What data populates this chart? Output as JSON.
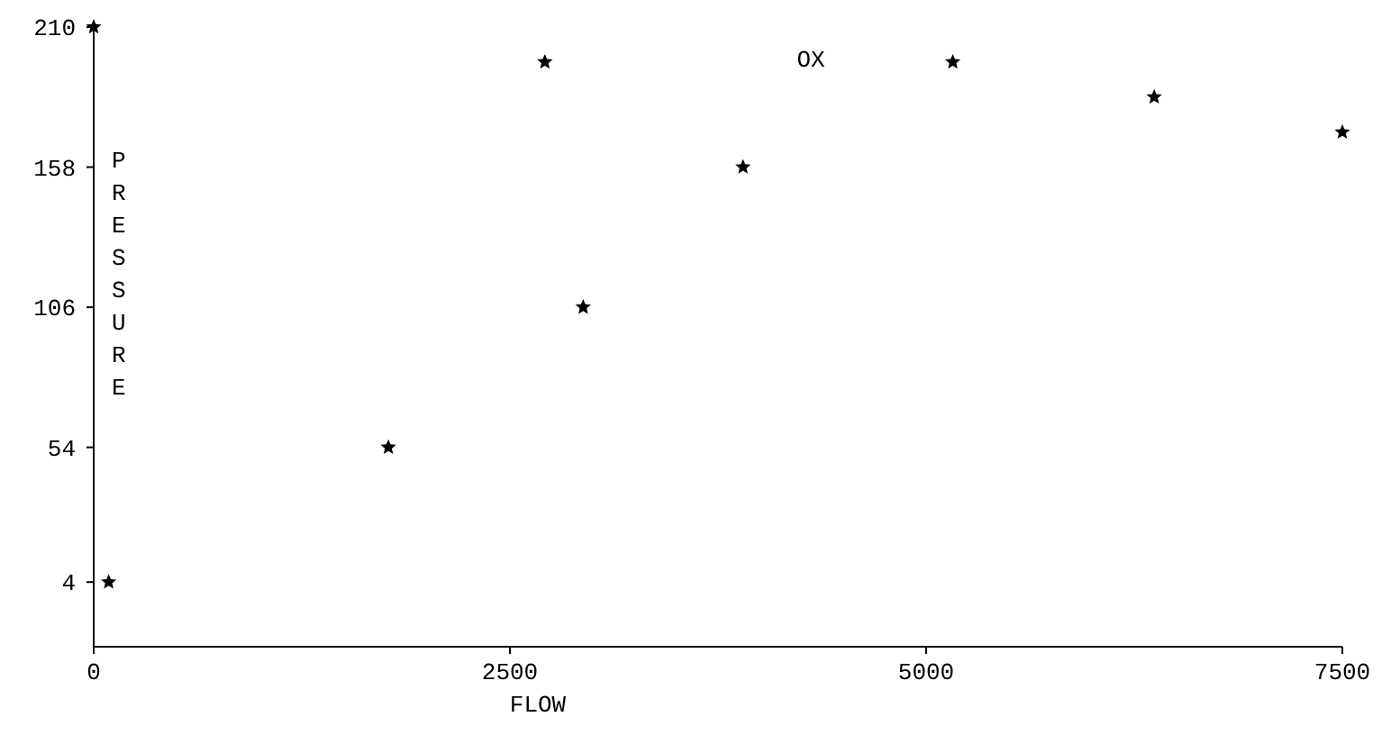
{
  "chart_data": {
    "type": "scatter",
    "xlabel": "FLOW",
    "ylabel": "PRESSURE",
    "annotations": [
      "OX"
    ],
    "x": [
      0,
      90,
      1770,
      2710,
      2940,
      3900,
      5160,
      6370,
      7500
    ],
    "values": [
      210,
      4,
      54,
      197,
      106,
      158,
      197,
      184,
      171
    ],
    "color": "#000000",
    "marker": "star",
    "xlim": [
      0,
      7500
    ],
    "ylim": [
      -20,
      210
    ],
    "xticks": [
      0,
      2500,
      5000,
      7500
    ],
    "yticks": [
      4,
      54,
      106,
      158,
      210
    ],
    "grid": false
  }
}
